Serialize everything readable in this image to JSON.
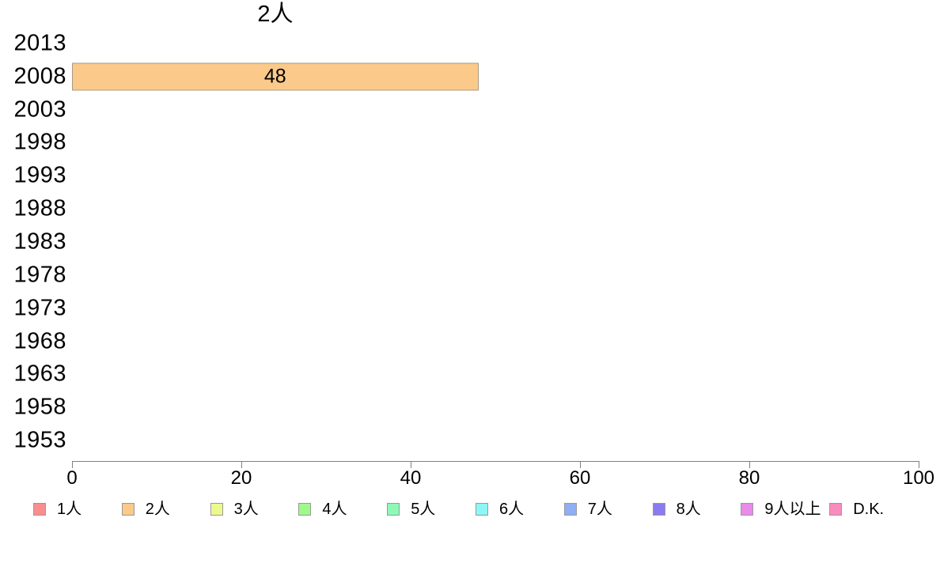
{
  "chart_data": {
    "type": "bar",
    "orientation": "horizontal",
    "title": "2人",
    "categories": [
      "2013",
      "2008",
      "2003",
      "1998",
      "1993",
      "1988",
      "1983",
      "1978",
      "1973",
      "1968",
      "1963",
      "1958",
      "1953"
    ],
    "values": [
      null,
      48,
      null,
      null,
      null,
      null,
      null,
      null,
      null,
      null,
      null,
      null,
      null
    ],
    "xlabel": "",
    "ylabel": "",
    "xlim": [
      0,
      100
    ],
    "x_ticks": [
      0,
      20,
      40,
      60,
      80,
      100
    ],
    "grid": false,
    "legend_position": "bottom",
    "series_name": "2人",
    "series_color": "#fbc98a",
    "series_border_color": "#a89a80",
    "axis_color": "#808080",
    "text_color": "#000000",
    "legend": [
      {
        "label": "1人",
        "color": "#f98e8e"
      },
      {
        "label": "2人",
        "color": "#fbc98a"
      },
      {
        "label": "3人",
        "color": "#edf98e"
      },
      {
        "label": "4人",
        "color": "#9ef98a"
      },
      {
        "label": "5人",
        "color": "#8ef9b6"
      },
      {
        "label": "6人",
        "color": "#8ef6f6"
      },
      {
        "label": "7人",
        "color": "#8eaff6"
      },
      {
        "label": "8人",
        "color": "#8a7bef"
      },
      {
        "label": "9人以上",
        "color": "#e98be9"
      },
      {
        "label": "D.K.",
        "color": "#f98bbd"
      }
    ]
  }
}
